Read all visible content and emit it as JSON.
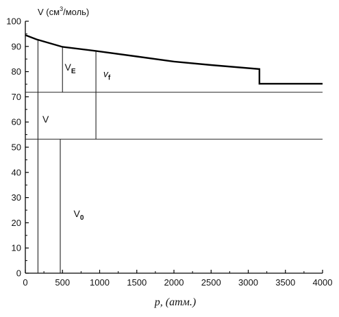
{
  "chart_data": {
    "type": "line",
    "title": "",
    "xlabel": "p, (атм.)",
    "ylabel": {
      "prefix": "V (см",
      "sup": "3",
      "suffix": "/моль)"
    },
    "xlim": [
      0,
      4000
    ],
    "ylim": [
      0,
      100
    ],
    "xticks": [
      0,
      500,
      1000,
      1500,
      2000,
      2500,
      3000,
      3500,
      4000
    ],
    "yticks": [
      0,
      10,
      20,
      30,
      40,
      50,
      60,
      70,
      80,
      90,
      100
    ],
    "grid": false,
    "series": [
      {
        "values": [
          {
            "x": 0,
            "y": 94.5
          },
          {
            "x": 150,
            "y": 92.8
          },
          {
            "x": 500,
            "y": 89.8
          },
          {
            "x": 950,
            "y": 88.2
          },
          {
            "x": 1500,
            "y": 86.0
          },
          {
            "x": 2000,
            "y": 84.0
          },
          {
            "x": 2500,
            "y": 82.6
          },
          {
            "x": 3150,
            "y": 81.0
          },
          {
            "x": 3150,
            "y": 75.2
          },
          {
            "x": 4000,
            "y": 75.2
          }
        ]
      }
    ],
    "horizontal_lines": [
      71.8,
      53.2
    ],
    "vertical_segments": [
      {
        "x": 170,
        "y1": 0,
        "y2": 92.6
      },
      {
        "x": 470,
        "y1": 0,
        "y2": 53.2
      },
      {
        "x": 500,
        "y1": 71.8,
        "y2": 89.8
      },
      {
        "x": 950,
        "y1": 53.2,
        "y2": 88.2
      }
    ],
    "annotations": [
      {
        "id": "ann-ve",
        "main": "V",
        "sub": "E",
        "italic": false,
        "x": 530,
        "y": 80.5
      },
      {
        "id": "ann-vf",
        "main": "v",
        "sub": "f",
        "italic": true,
        "x": 1050,
        "y": 77.8
      },
      {
        "id": "ann-v",
        "main": "V",
        "sub": "",
        "italic": false,
        "x": 230,
        "y": 59.8
      },
      {
        "id": "ann-v0",
        "main": "V",
        "sub": "0",
        "italic": false,
        "x": 650,
        "y": 22.3
      }
    ]
  }
}
